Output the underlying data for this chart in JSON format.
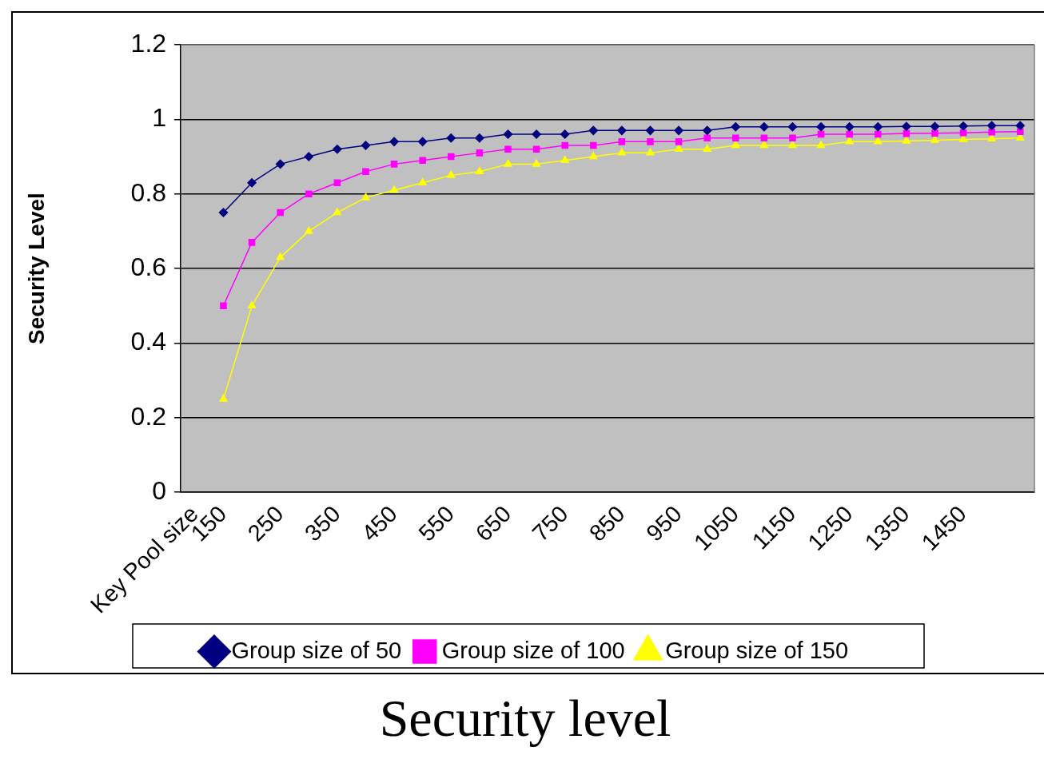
{
  "chart_data": {
    "type": "line",
    "title": "Security level",
    "ylabel": "Security Level",
    "categories": [
      "Key Pool size",
      "150",
      null,
      "250",
      null,
      "350",
      null,
      "450",
      null,
      "550",
      null,
      "650",
      null,
      "750",
      null,
      "850",
      null,
      "950",
      null,
      "1050",
      null,
      "1150",
      null,
      "1250",
      null,
      "1350",
      null,
      "1450",
      null,
      null
    ],
    "series": [
      {
        "name": "Group size of 50",
        "color": "#000080",
        "marker": "diamond",
        "values": [
          null,
          0.75,
          0.83,
          0.88,
          0.9,
          0.92,
          0.93,
          0.94,
          0.94,
          0.95,
          0.95,
          0.96,
          0.96,
          0.96,
          0.97,
          0.97,
          0.97,
          0.97,
          0.97,
          0.98,
          0.98,
          0.98,
          0.98,
          0.98,
          0.98,
          0.981,
          0.981,
          0.982,
          0.983,
          0.983
        ]
      },
      {
        "name": "Group size of 100",
        "color": "#ff00ff",
        "marker": "square",
        "values": [
          null,
          0.5,
          0.67,
          0.75,
          0.8,
          0.83,
          0.86,
          0.88,
          0.89,
          0.9,
          0.91,
          0.92,
          0.92,
          0.93,
          0.93,
          0.94,
          0.94,
          0.94,
          0.95,
          0.95,
          0.95,
          0.95,
          0.96,
          0.96,
          0.96,
          0.962,
          0.963,
          0.964,
          0.966,
          0.967
        ]
      },
      {
        "name": "Group size of 150",
        "color": "#ffff00",
        "marker": "triangle",
        "values": [
          null,
          0.25,
          0.5,
          0.63,
          0.7,
          0.75,
          0.79,
          0.81,
          0.83,
          0.85,
          0.86,
          0.88,
          0.88,
          0.89,
          0.9,
          0.91,
          0.91,
          0.92,
          0.92,
          0.93,
          0.93,
          0.93,
          0.93,
          0.94,
          0.94,
          0.942,
          0.944,
          0.946,
          0.948,
          0.95
        ]
      }
    ],
    "ylim": [
      0,
      1.2
    ],
    "yticks": [
      0,
      0.2,
      0.4,
      0.6,
      0.8,
      1,
      1.2
    ],
    "grid": "y",
    "legend": "bottom"
  }
}
